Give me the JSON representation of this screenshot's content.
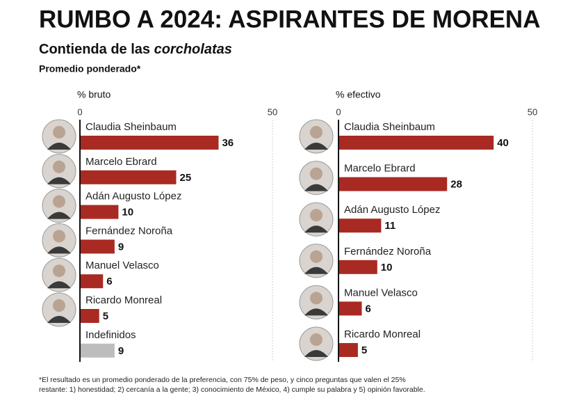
{
  "title": "RUMBO A 2024: ASPIRANTES DE MORENA",
  "subtitle": "Contienda de las",
  "subtitle_emphasis": "corcholatas",
  "note": "Promedio ponderado*",
  "footnote": [
    "*El resultado es un promedio ponderado de la preferencia, con 75% de peso, y cinco preguntas que valen el 25%",
    "restante: 1) honestidad; 2) cercanía a la gente; 3) conocimiento de México, 4) cumple su palabra y 5) opinión favorable."
  ],
  "chart_data": [
    {
      "type": "bar",
      "orientation": "horizontal",
      "x_label": "% bruto",
      "categories": [
        "Claudia Sheinbaum",
        "Marcelo Ebrard",
        "Adán Augusto López",
        "Fernández Noroña",
        "Manuel Velasco",
        "Ricardo Monreal",
        "Indefinidos"
      ],
      "values": [
        36,
        25,
        10,
        9,
        6,
        5,
        9
      ],
      "colors": [
        "#a92a22",
        "#a92a22",
        "#a92a22",
        "#a92a22",
        "#a92a22",
        "#a92a22",
        "#bdbdbd"
      ],
      "xlim": [
        0,
        50
      ],
      "xticks": [
        0,
        50
      ],
      "grid": true
    },
    {
      "type": "bar",
      "orientation": "horizontal",
      "x_label": "% efectivo",
      "categories": [
        "Claudia Sheinbaum",
        "Marcelo Ebrard",
        "Adán Augusto López",
        "Fernández Noroña",
        "Manuel Velasco",
        "Ricardo Monreal"
      ],
      "values": [
        40,
        28,
        11,
        10,
        6,
        5
      ],
      "colors": [
        "#a92a22",
        "#a92a22",
        "#a92a22",
        "#a92a22",
        "#a92a22",
        "#a92a22"
      ],
      "xlim": [
        0,
        50
      ],
      "xticks": [
        0,
        50
      ],
      "grid": true
    }
  ]
}
